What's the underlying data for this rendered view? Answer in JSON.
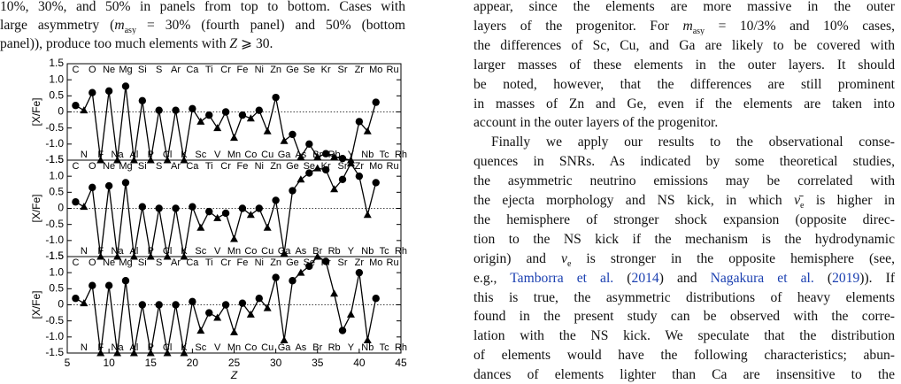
{
  "left_text": [
    [
      "10%, 30%, and 50% in panels from top to bottom. Cases with"
    ],
    [
      "large asymmetry (",
      {
        "i": "m",
        "sub": "asy"
      },
      " = 30% (fourth panel) and 50% (bottom"
    ],
    [
      "panel)), produce too much elements with ",
      {
        "i": "Z"
      },
      " ⩾ 30."
    ]
  ],
  "right_text": [
    [
      "appear, since the elements are more massive in the outer"
    ],
    [
      "layers of the progenitor. For ",
      {
        "i": "m",
        "sub": "asy"
      },
      " = 10/3% and 10% cases,"
    ],
    [
      "the differences of Sc, Cu, and Ga are likely to be covered with"
    ],
    [
      "larger masses of these elements in the outer layers. It should"
    ],
    [
      "be noted, however, that the differences are still prominent"
    ],
    [
      "in masses of Zn and Ge, even if the elements are taken into"
    ],
    [
      "account in the outer layers of the progenitor."
    ],
    [
      "Finally we apply our results to the observational conse-"
    ],
    [
      "quences in SNRs. As indicated by some theoretical studies,"
    ],
    [
      "the asymmetric neutrino emissions may be correlated with"
    ],
    [
      "the ejecta morphology and NS kick, in which ",
      {
        "i": "ν̄",
        "sub": "e"
      },
      " is higher in"
    ],
    [
      "the hemisphere of stronger shock expansion (opposite direc-"
    ],
    [
      "tion to the NS kick if the mechanism is the hydrodynamic"
    ],
    [
      "origin) and ",
      {
        "i": "ν",
        "sub": "e"
      },
      " is stronger in the opposite hemisphere (see,"
    ],
    [
      "e.g., ",
      {
        "link": "Tamborra et al."
      },
      " (",
      {
        "link": "2014"
      },
      ") and ",
      {
        "link": "Nagakura et al."
      },
      " (",
      {
        "link": "2019"
      },
      ")). If"
    ],
    [
      "this is true, the asymmetric distributions of heavy elements"
    ],
    [
      "found in the present study can be observed with the corre-"
    ],
    [
      "lation with the NS kick. We speculate that the distribution"
    ],
    [
      "of elements would have the following characteristics; abun-"
    ],
    [
      "dances of elements lighter than Ca are insensitive to the"
    ]
  ],
  "figure": {
    "type": "line",
    "ylabel": "[X/Fe]",
    "xlabel": "Z",
    "xlim": [
      5,
      45
    ],
    "xticks": [
      5,
      10,
      15,
      20,
      25,
      30,
      35,
      40,
      45
    ],
    "ylim": [
      -1.5,
      1.5
    ],
    "yticks": [
      -1.5,
      {
        "value": -1,
        "label": "-1.0"
      },
      -0.5,
      0,
      0.5,
      {
        "value": 1,
        "label": "1.0"
      },
      1.5
    ],
    "grid": true,
    "color": "#000000",
    "elements": [
      {
        "z": 6,
        "symbol": "C"
      },
      {
        "z": 7,
        "symbol": "N"
      },
      {
        "z": 8,
        "symbol": "O"
      },
      {
        "z": 9,
        "symbol": "F"
      },
      {
        "z": 10,
        "symbol": "Ne"
      },
      {
        "z": 11,
        "symbol": "Na"
      },
      {
        "z": 12,
        "symbol": "Mg"
      },
      {
        "z": 13,
        "symbol": "Al"
      },
      {
        "z": 14,
        "symbol": "Si"
      },
      {
        "z": 15,
        "symbol": "P"
      },
      {
        "z": 16,
        "symbol": "S"
      },
      {
        "z": 17,
        "symbol": "Cl"
      },
      {
        "z": 18,
        "symbol": "Ar"
      },
      {
        "z": 19,
        "symbol": "K"
      },
      {
        "z": 20,
        "symbol": "Ca"
      },
      {
        "z": 21,
        "symbol": "Sc"
      },
      {
        "z": 22,
        "symbol": "Ti"
      },
      {
        "z": 23,
        "symbol": "V"
      },
      {
        "z": 24,
        "symbol": "Cr"
      },
      {
        "z": 25,
        "symbol": "Mn"
      },
      {
        "z": 26,
        "symbol": "Fe"
      },
      {
        "z": 27,
        "symbol": "Co"
      },
      {
        "z": 28,
        "symbol": "Ni"
      },
      {
        "z": 29,
        "symbol": "Cu"
      },
      {
        "z": 30,
        "symbol": "Zn"
      },
      {
        "z": 31,
        "symbol": "Ga"
      },
      {
        "z": 32,
        "symbol": "Ge"
      },
      {
        "z": 33,
        "symbol": "As"
      },
      {
        "z": 34,
        "symbol": "Se"
      },
      {
        "z": 35,
        "symbol": "Br"
      },
      {
        "z": 36,
        "symbol": "Kr"
      },
      {
        "z": 37,
        "symbol": "Rb"
      },
      {
        "z": 38,
        "symbol": "Sr"
      },
      {
        "z": 39,
        "symbol": "Y"
      },
      {
        "z": 40,
        "symbol": "Zr"
      },
      {
        "z": 41,
        "symbol": "Nb"
      },
      {
        "z": 42,
        "symbol": "Mo"
      },
      {
        "z": 43,
        "symbol": "Tc"
      },
      {
        "z": 44,
        "symbol": "Ru"
      },
      {
        "z": 45,
        "symbol": "Rh"
      }
    ],
    "x": [
      6,
      7,
      8,
      9,
      10,
      11,
      12,
      13,
      14,
      15,
      16,
      17,
      18,
      19,
      20,
      21,
      22,
      23,
      24,
      25,
      26,
      27,
      28,
      29,
      30,
      31,
      32,
      33,
      34,
      35,
      36,
      37,
      38,
      39,
      40,
      41,
      42
    ],
    "panels": [
      {
        "values": [
          0.2,
          0.05,
          0.6,
          -1.5,
          0.65,
          -1.5,
          0.8,
          -1.5,
          0.35,
          -1.5,
          0.05,
          -1.5,
          0.05,
          -1.5,
          0.1,
          -0.3,
          -0.1,
          -0.5,
          0.0,
          -0.8,
          -0.1,
          -0.2,
          0.05,
          -0.6,
          0.45,
          -0.9,
          -0.7,
          -1.4,
          -1.0,
          -1.4,
          -1.3,
          -1.4,
          -1.45,
          -1.5,
          -0.3,
          -0.6,
          0.3
        ]
      },
      {
        "values": [
          0.2,
          0.05,
          0.65,
          -1.5,
          0.7,
          -1.5,
          0.8,
          -1.5,
          0.05,
          -1.5,
          0.0,
          -1.5,
          0.0,
          -1.5,
          0.05,
          -0.6,
          -0.1,
          -0.3,
          -0.15,
          -0.95,
          0.0,
          -0.2,
          0.0,
          -0.6,
          0.25,
          -1.4,
          0.55,
          0.9,
          1.1,
          1.25,
          1.2,
          0.6,
          0.9,
          1.4,
          1.0,
          -0.2,
          0.8
        ]
      },
      {
        "values": [
          0.2,
          0.05,
          0.6,
          -1.5,
          0.6,
          -1.5,
          0.75,
          -1.5,
          0.0,
          -1.5,
          0.0,
          -1.5,
          0.0,
          -1.5,
          0.1,
          -0.8,
          -0.25,
          -0.4,
          0.0,
          -0.85,
          0.05,
          -0.3,
          0.2,
          -0.1,
          0.85,
          -1.1,
          0.75,
          1.0,
          1.2,
          1.5,
          1.35,
          0.35,
          -0.8,
          -0.3,
          1.0,
          -1.1,
          0.2
        ]
      }
    ]
  }
}
